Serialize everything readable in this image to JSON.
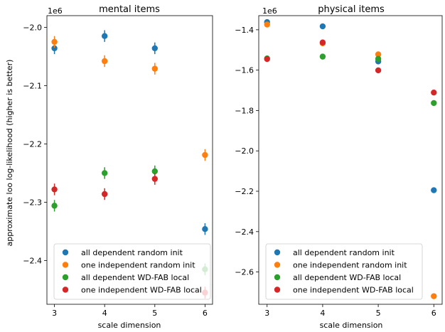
{
  "colors": {
    "all dependent random init": "#1f77b4",
    "one independent random init": "#ff7f0e",
    "all dependent WD-FAB local": "#2ca02c",
    "one independent WD-FAB local": "#d62728"
  },
  "figure": {
    "ylabel": "approximate loo log-likelihood (higher is better)"
  },
  "chart_data": [
    {
      "type": "scatter",
      "title": "mental items",
      "xlabel": "scale dimension",
      "ylabel": "approximate loo log-likelihood (higher is better)",
      "offset_text": "1e6",
      "xlim": [
        2.85,
        6.15
      ],
      "ylim": [
        -2.475,
        -1.98
      ],
      "xticks": [
        3,
        4,
        5,
        6
      ],
      "xtick_labels": [
        "3",
        "4",
        "5",
        "6"
      ],
      "yticks": [
        -2.4,
        -2.3,
        -2.2,
        -2.1,
        -2.0
      ],
      "ytick_labels": [
        "−2.4",
        "−2.3",
        "−2.2",
        "−2.1",
        "−2.0"
      ],
      "grid": false,
      "legend_position": "lower-left",
      "series": [
        {
          "name": "all dependent random init",
          "x": [
            3,
            4,
            5,
            6
          ],
          "y": [
            -2.036,
            -2.015,
            -2.036,
            -2.346
          ],
          "yerr": [
            0.01,
            0.01,
            0.01,
            0.01
          ]
        },
        {
          "name": "one independent random init",
          "x": [
            3,
            4,
            5,
            6
          ],
          "y": [
            -2.025,
            -2.058,
            -2.071,
            -2.219
          ],
          "yerr": [
            0.01,
            0.01,
            0.01,
            0.01
          ]
        },
        {
          "name": "all dependent WD-FAB local",
          "x": [
            3,
            4,
            5,
            6
          ],
          "y": [
            -2.306,
            -2.25,
            -2.247,
            -2.415
          ],
          "yerr": [
            0.01,
            0.01,
            0.01,
            0.01
          ]
        },
        {
          "name": "one independent WD-FAB local",
          "x": [
            3,
            4,
            5,
            6
          ],
          "y": [
            -2.278,
            -2.286,
            -2.26,
            -2.455
          ],
          "yerr": [
            0.01,
            0.01,
            0.01,
            0.01
          ]
        }
      ]
    },
    {
      "type": "scatter",
      "title": "physical items",
      "xlabel": "scale dimension",
      "offset_text": "1e6",
      "xlim": [
        2.85,
        6.15
      ],
      "ylim": [
        -2.76,
        -1.33
      ],
      "xticks": [
        3,
        4,
        5,
        6
      ],
      "xtick_labels": [
        "3",
        "4",
        "5",
        "6"
      ],
      "yticks": [
        -2.6,
        -2.4,
        -2.2,
        -2.0,
        -1.8,
        -1.6,
        -1.4
      ],
      "ytick_labels": [
        "−2.6",
        "−2.4",
        "−2.2",
        "−2.0",
        "−1.8",
        "−1.6",
        "−1.4"
      ],
      "grid": false,
      "legend_position": "lower-left",
      "series": [
        {
          "name": "all dependent random init",
          "x": [
            3,
            4,
            5,
            6
          ],
          "y": [
            -1.362,
            -1.383,
            -1.557,
            -2.195
          ],
          "yerr": [
            0.004,
            0.004,
            0.004,
            0.004
          ]
        },
        {
          "name": "one independent random init",
          "x": [
            3,
            4,
            5,
            6
          ],
          "y": [
            -1.374,
            -1.467,
            -1.522,
            -2.72
          ],
          "yerr": [
            0.004,
            0.004,
            0.004,
            0.004
          ]
        },
        {
          "name": "all dependent WD-FAB local",
          "x": [
            3,
            4,
            5,
            6
          ],
          "y": [
            -1.542,
            -1.533,
            -1.544,
            -1.763
          ],
          "yerr": [
            0.004,
            0.004,
            0.004,
            0.004
          ]
        },
        {
          "name": "one independent WD-FAB local",
          "x": [
            3,
            4,
            5,
            6
          ],
          "y": [
            -1.545,
            -1.463,
            -1.601,
            -1.711
          ],
          "yerr": [
            0.004,
            0.004,
            0.004,
            0.004
          ]
        }
      ]
    }
  ]
}
